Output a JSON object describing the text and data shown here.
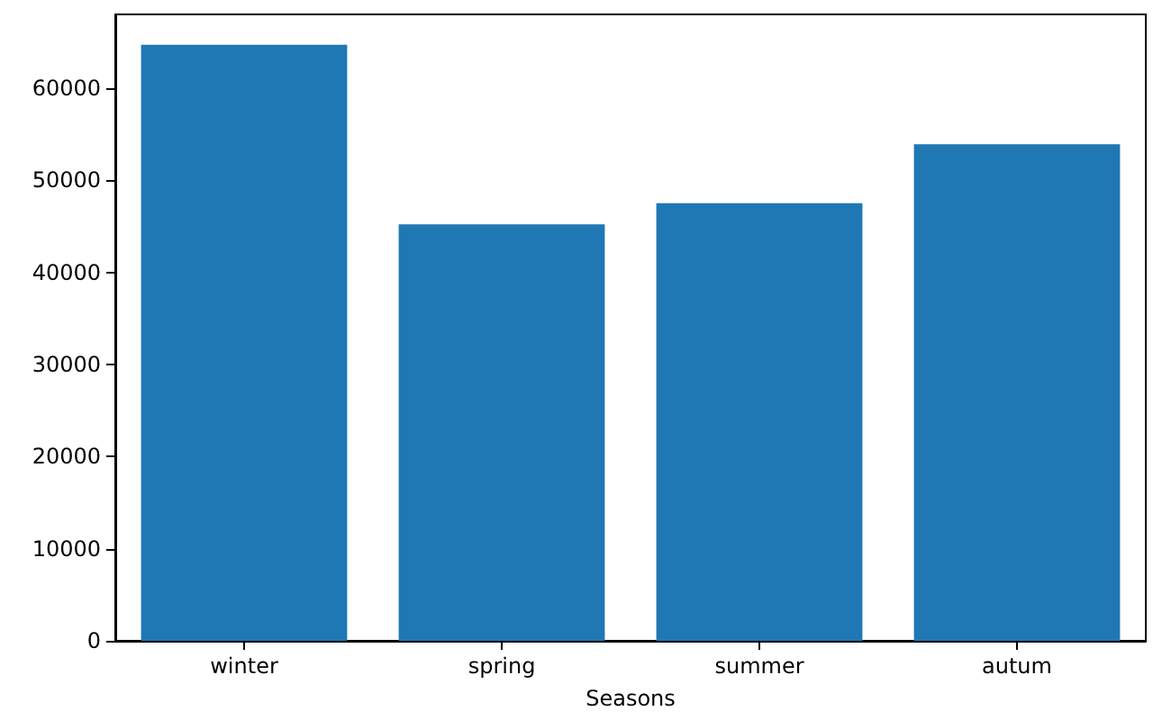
{
  "chart_data": {
    "type": "bar",
    "xlabel": "Seasons",
    "categories": [
      "winter",
      "spring",
      "summer",
      "autum"
    ],
    "values": [
      64700,
      45200,
      47500,
      53900
    ],
    "color": "#1f77b4",
    "ylim": [
      0,
      68000
    ],
    "yticks": [
      0,
      10000,
      20000,
      30000,
      40000,
      50000,
      60000
    ],
    "grid": false
  }
}
